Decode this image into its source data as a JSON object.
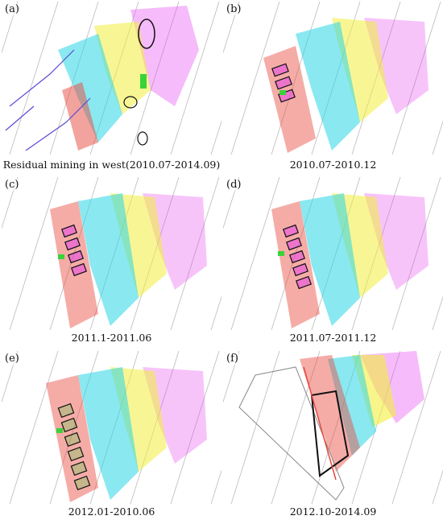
{
  "panels": [
    {
      "tag": "(a)",
      "caption": "Residual mining in west(2010.07-2014.09)"
    },
    {
      "tag": "(b)",
      "caption": "2010.07-2010.12"
    },
    {
      "tag": "(c)",
      "caption": "2011.1-2011.06"
    },
    {
      "tag": "(d)",
      "caption": "2011.07-2011.12"
    },
    {
      "tag": "(e)",
      "caption": "2012.01-2010.06"
    },
    {
      "tag": "(f)",
      "caption": "2012.10-2014.09"
    }
  ],
  "colors": {
    "workings_magenta": "#e63cf0",
    "workings_yellow": "#f3ee3c",
    "workings_cyan": "#29d6e6",
    "workings_red": "#e8473c",
    "boundary_black": "#111111",
    "grid_line": "#bbbbbb",
    "highlight_green": "#39d339"
  }
}
